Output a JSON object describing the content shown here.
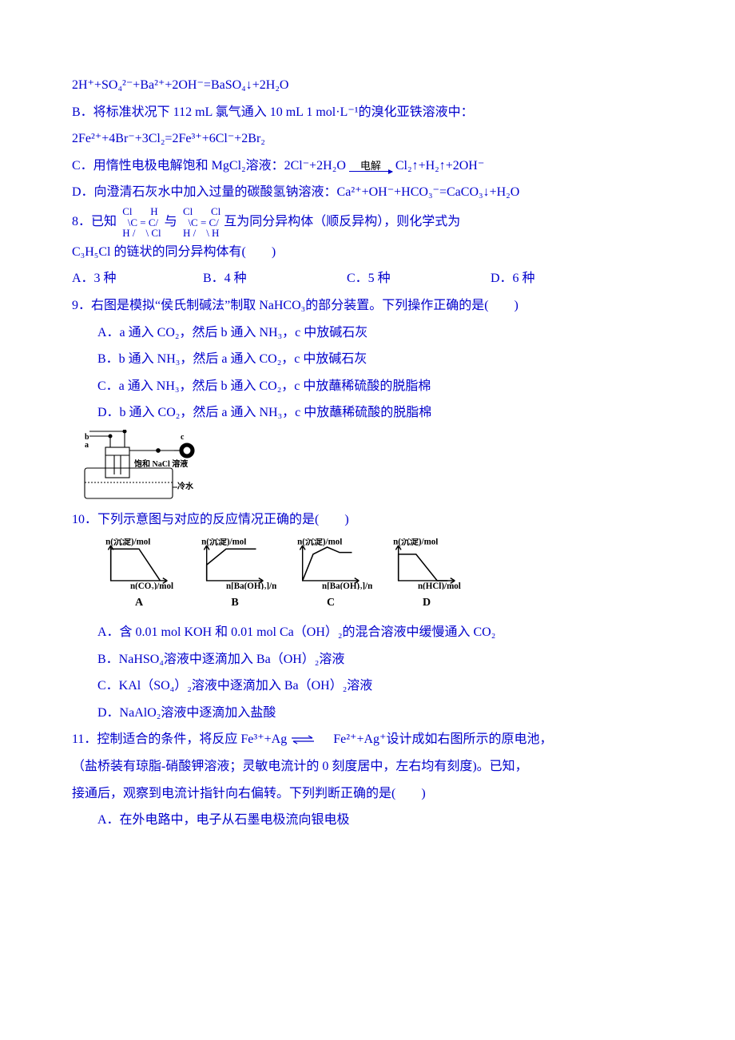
{
  "p1": "2H⁺+SO₄²⁻+Ba²⁺+2OH⁻=BaSO₄↓+2H₂O",
  "p2": "B．将标准状况下 112 mL 氯气通入 10 mL 1 mol·L⁻¹的溴化亚铁溶液中：",
  "p3": "2Fe²⁺+4Br⁻+3Cl₂=2Fe³⁺+6Cl⁻+2Br₂",
  "p4_a": "C．用惰性电极电解饱和 MgCl₂溶液：2Cl⁻+2H₂O",
  "p4_top": "电解",
  "p4_b": "Cl₂↑+H₂↑+2OH⁻",
  "p5": "D．向澄清石灰水中加入过量的碳酸氢钠溶液：Ca²⁺+OH⁻+HCO₃⁻=CaCO₃↓+H₂O",
  "q8_a": "8．已知",
  "struct1_l1": " Cl       H",
  "struct1_l2": "   \\C = C/",
  "struct1_l3": " H /    \\ Cl",
  "q8_mid": "与",
  "struct2_l1": " Cl       Cl",
  "struct2_l2": "   \\C = C/",
  "struct2_l3": " H /    \\ H",
  "q8_b": "互为同分异构体（顺反异构），则化学式为",
  "q8_c": "C₃H₅Cl 的链状的同分异构体有(　　)",
  "q8_opts": {
    "A": "A．3 种",
    "B": "B．4 种",
    "C": "C．5 种",
    "D": "D．6 种"
  },
  "q9": "9．右图是模拟“侯氏制碱法”制取 NaHCO₃的部分装置。下列操作正确的是(　　)",
  "q9A": "A．a 通入 CO₂，然后 b 通入 NH₃，c 中放碱石灰",
  "q9B": "B．b 通入 NH₃，然后 a 通入 CO₂，c 中放碱石灰",
  "q9C": "C．a 通入 NH₃，然后 b 通入 CO₂，c 中放蘸稀硫酸的脱脂棉",
  "q9D": "D．b 通入 CO₂，然后 a 通入 NH₃，c 中放蘸稀硫酸的脱脂棉",
  "apparatus": {
    "a": "a",
    "b": "b",
    "c": "c",
    "nacl": "饱和 NaCl 溶液",
    "coldwater": "冷水"
  },
  "q10": "10．下列示意图与对应的反应情况正确的是(　　)",
  "charts": {
    "y_label": "n(沉淀)/mol",
    "items": [
      {
        "label": "A",
        "xlab": "n(CO₂)/mol",
        "poly": "8,48 8,12 40,12 64,48",
        "ylab": "n(沉淀)/mol"
      },
      {
        "label": "B",
        "xlab": "n[Ba(OH)₂]/mol",
        "poly": "8,48 8,30 30,12 64,12",
        "ylab": "n(沉淀)/mol"
      },
      {
        "label": "C",
        "xlab": "n[Ba(OH)₂]/mol",
        "poly": "8,48 20,18 36,10 50,16 64,16",
        "ylab": "n(沉淀)/mol"
      },
      {
        "label": "D",
        "xlab": "n(HCl)/mol",
        "poly": "8,48 8,18 28,18 52,48 64,48",
        "ylab": "n(沉淀)/mol"
      }
    ]
  },
  "q10A": "A．含 0.01 mol KOH 和 0.01 mol Ca（OH）₂的混合溶液中缓慢通入 CO₂",
  "q10B": "B．NaHSO₄溶液中逐滴加入 Ba（OH）₂溶液",
  "q10C": "C．KAl（SO₄）₂溶液中逐滴加入 Ba（OH）₂溶液",
  "q10D": "D．NaAlO₂溶液中逐滴加入盐酸",
  "q11_a": "11．控制适合的条件，将反应 Fe³⁺+Ag",
  "q11_b": "　Fe²⁺+Ag⁺设计成如右图所示的原电池，",
  "q11_c": "（盐桥装有琼脂-硝酸钾溶液；灵敏电流计的 0 刻度居中，左右均有刻度)。已知，",
  "q11_d": "接通后，观察到电流计指针向右偏转。下列判断正确的是(　　)",
  "q11A": "A．在外电路中，电子从石墨电极流向银电极"
}
